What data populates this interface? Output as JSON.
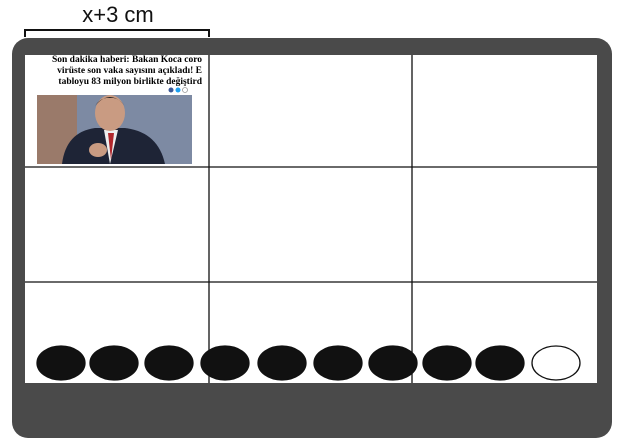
{
  "dimension_label": "x+3 cm",
  "news": {
    "lines": [
      "Son dakika haberi: Bakan Koca coro",
      "virüste son vaka sayısını açıkladı! E",
      "tabloyu 83 milyon birlikte değiştird"
    ]
  }
}
